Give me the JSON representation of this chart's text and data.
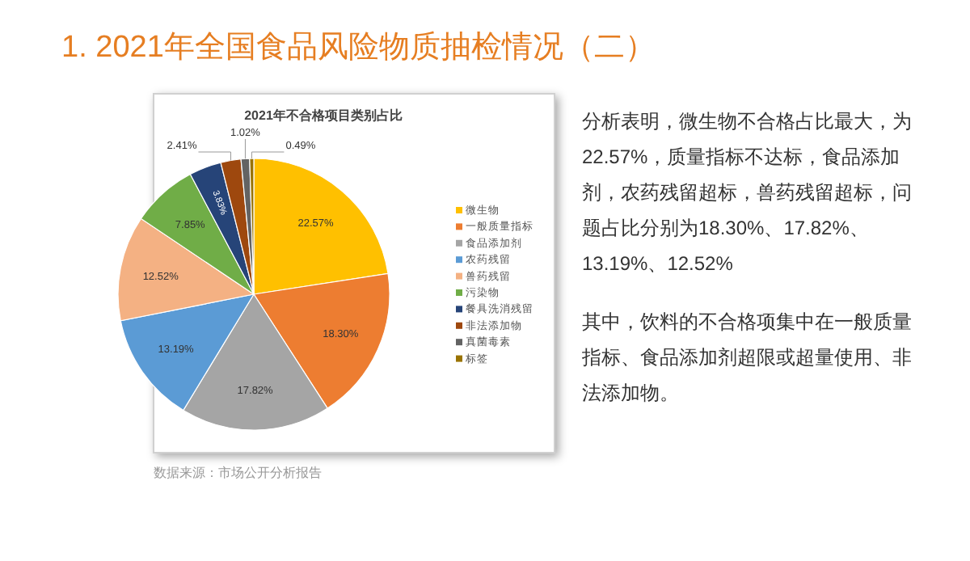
{
  "chart_data": {
    "type": "pie",
    "title": "2021年不合格项目类别占比",
    "categories": [
      "微生物",
      "一般质量指标",
      "食品添加剂",
      "农药残留",
      "兽药残留",
      "污染物",
      "餐具洗消残留",
      "非法添加物",
      "真菌毒素",
      "标签"
    ],
    "values": [
      22.57,
      18.3,
      17.82,
      13.19,
      12.52,
      7.85,
      3.83,
      2.41,
      1.02,
      0.49
    ],
    "value_labels": [
      "22.57%",
      "18.30%",
      "17.82%",
      "13.19%",
      "12.52%",
      "7.85%",
      "3.83%",
      "2.41%",
      "1.02%",
      "0.49%"
    ],
    "colors": [
      "#ffc000",
      "#ed7d31",
      "#a5a5a5",
      "#5b9bd5",
      "#f4b183",
      "#70ad47",
      "#264478",
      "#9e480e",
      "#636363",
      "#997300"
    ],
    "legend": "right",
    "annotations": [
      "1. 2021年全国食品风险物质抽检情况（二）",
      "分析表明，微生物不合格占比最大，为22.57%，质量指标不达标，食品添加剂，农药残留超标，兽药残留超标，问题占比分别为18.30%、17.82%、13.19%、12.52%",
      "其中，饮料的不合格项集中在一般质量指标、食品添加剂超限或超量使用、非法添加物。",
      "数据来源：市场公开分析报告"
    ]
  }
}
